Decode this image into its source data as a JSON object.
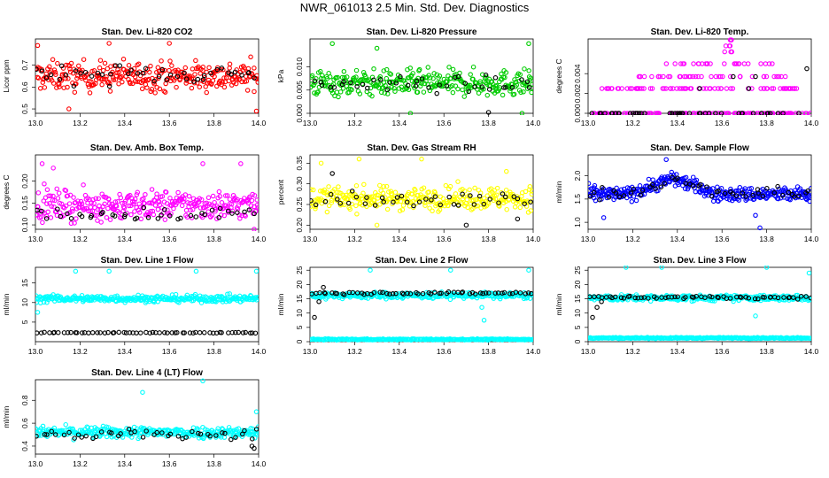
{
  "title": "NWR_061013  2.5 Min. Std. Dev. Diagnostics",
  "overlay_color": "#000000",
  "chart_data": [
    {
      "type": "scatter",
      "title": "Stan. Dev. Li-820 CO2",
      "ylabel": "Licor ppm",
      "color": "#ff0000",
      "xlim": [
        13.0,
        14.0
      ],
      "ylim": [
        0.48,
        0.82
      ],
      "xticks": [
        13.0,
        13.2,
        13.4,
        13.6,
        13.8,
        14.0
      ],
      "yticks": [
        0.5,
        0.6,
        0.7
      ],
      "xtick_labels": [
        "13.0",
        "13.2",
        "13.4",
        "13.6",
        "13.8",
        "14.0"
      ],
      "ytick_labels": [
        "0.5",
        "0.6",
        "0.7"
      ],
      "main": {
        "n": 300,
        "center": 0.65,
        "spread": 0.06,
        "outliers": [
          [
            13.01,
            0.79
          ],
          [
            13.15,
            0.5
          ],
          [
            13.33,
            0.8
          ],
          [
            13.6,
            0.8
          ],
          [
            13.99,
            0.49
          ]
        ]
      },
      "overlay": {
        "n": 45,
        "center": 0.66,
        "spread": 0.04,
        "outliers": []
      }
    },
    {
      "type": "scatter",
      "title": "Stan. Dev. Li-820 Pressure",
      "ylabel": "kPa",
      "color": "#00cc00",
      "xlim": [
        13.0,
        14.0
      ],
      "ylim": [
        0.0,
        0.016
      ],
      "xticks": [
        13.0,
        13.2,
        13.4,
        13.6,
        13.8,
        14.0
      ],
      "yticks": [
        0.0,
        0.005,
        0.01
      ],
      "xtick_labels": [
        "13.0",
        "13.2",
        "13.4",
        "13.6",
        "13.8",
        "14.0"
      ],
      "ytick_labels": [
        "0.000",
        "0.005",
        "0.010"
      ],
      "main": {
        "n": 320,
        "center": 0.0065,
        "spread": 0.0025,
        "outliers": [
          [
            13.1,
            0.015
          ],
          [
            13.98,
            0.015
          ],
          [
            13.3,
            0.014
          ],
          [
            13.45,
            0.0
          ],
          [
            13.95,
            0.0
          ]
        ]
      },
      "overlay": {
        "n": 40,
        "center": 0.0062,
        "spread": 0.0015,
        "outliers": [
          [
            13.8,
            0.0002
          ]
        ]
      }
    },
    {
      "type": "scatter",
      "title": "Stan. Dev. Li-820 Temp.",
      "ylabel": "degrees C",
      "color": "#ff00ff",
      "xlim": [
        13.0,
        14.0
      ],
      "ylim": [
        0.0,
        0.0075
      ],
      "xticks": [
        13.0,
        13.2,
        13.4,
        13.6,
        13.8,
        14.0
      ],
      "yticks": [
        0.0,
        0.002,
        0.004
      ],
      "xtick_labels": [
        "13.0",
        "13.2",
        "13.4",
        "13.6",
        "13.8",
        "14.0"
      ],
      "ytick_labels": [
        "0.000",
        "0.002",
        "0.004"
      ],
      "levels": [
        0.0,
        0.0025,
        0.0037,
        0.005
      ],
      "level_counts": [
        120,
        70,
        40,
        25
      ],
      "level_ranges": [
        [
          13.0,
          14.0
        ],
        [
          13.05,
          13.95
        ],
        [
          13.2,
          13.9
        ],
        [
          13.35,
          13.85
        ]
      ],
      "peak": {
        "x": 13.63,
        "values": [
          0.0062,
          0.0068,
          0.0074
        ]
      },
      "overlay": {
        "n": 45,
        "center": 0.0,
        "spread": 0.0,
        "outliers": [
          [
            13.5,
            0.0025
          ],
          [
            13.72,
            0.0025
          ],
          [
            13.75,
            0.0037
          ],
          [
            13.98,
            0.0045
          ],
          [
            13.65,
            0.0037
          ]
        ]
      }
    },
    {
      "type": "scatter",
      "title": "Stan. Dev. Amb. Box Temp.",
      "ylabel": "degrees C",
      "color": "#ff00ff",
      "xlim": [
        13.0,
        14.0
      ],
      "ylim": [
        0.09,
        0.26
      ],
      "xticks": [
        13.0,
        13.2,
        13.4,
        13.6,
        13.8,
        14.0
      ],
      "yticks": [
        0.1,
        0.15,
        0.2
      ],
      "xtick_labels": [
        "13.0",
        "13.2",
        "13.4",
        "13.6",
        "13.8",
        "14.0"
      ],
      "ytick_labels": [
        "0.10",
        "0.15",
        "0.20"
      ],
      "main": {
        "n": 320,
        "center": 0.145,
        "spread": 0.03,
        "outliers": [
          [
            13.03,
            0.24
          ],
          [
            13.08,
            0.23
          ],
          [
            13.75,
            0.24
          ],
          [
            13.92,
            0.24
          ],
          [
            13.98,
            0.09
          ]
        ]
      },
      "overlay": {
        "n": 40,
        "center": 0.125,
        "spread": 0.012,
        "outliers": []
      }
    },
    {
      "type": "scatter",
      "title": "Stan. Dev. Gas Stream RH",
      "ylabel": "percent",
      "color": "#ffff00",
      "xlim": [
        13.0,
        14.0
      ],
      "ylim": [
        0.19,
        0.37
      ],
      "xticks": [
        13.0,
        13.2,
        13.4,
        13.6,
        13.8,
        14.0
      ],
      "yticks": [
        0.2,
        0.25,
        0.3,
        0.35
      ],
      "xtick_labels": [
        "13.0",
        "13.2",
        "13.4",
        "13.6",
        "13.8",
        "14.0"
      ],
      "ytick_labels": [
        "0.20",
        "0.25",
        "0.30",
        "0.35"
      ],
      "main": {
        "n": 320,
        "center": 0.265,
        "spread": 0.025,
        "outliers": [
          [
            13.05,
            0.35
          ],
          [
            13.22,
            0.36
          ],
          [
            13.5,
            0.36
          ],
          [
            13.88,
            0.33
          ],
          [
            13.3,
            0.2
          ]
        ]
      },
      "overlay": {
        "n": 40,
        "center": 0.26,
        "spread": 0.025,
        "outliers": [
          [
            13.1,
            0.325
          ],
          [
            13.93,
            0.215
          ],
          [
            13.7,
            0.2
          ]
        ]
      }
    },
    {
      "type": "scatter",
      "title": "Stan. Dev. Sample Flow",
      "ylabel": "ml/min",
      "color": "#0000ff",
      "xlim": [
        13.0,
        14.0
      ],
      "ylim": [
        0.85,
        2.45
      ],
      "xticks": [
        13.0,
        13.2,
        13.4,
        13.6,
        13.8,
        14.0
      ],
      "yticks": [
        1.0,
        1.5,
        2.0
      ],
      "xtick_labels": [
        "13.0",
        "13.2",
        "13.4",
        "13.6",
        "13.8",
        "14.0"
      ],
      "ytick_labels": [
        "1.0",
        "1.5",
        "2.0"
      ],
      "main": {
        "n": 340,
        "center": 1.6,
        "spread": 0.14,
        "bump": {
          "start": 13.15,
          "end": 13.55,
          "peak": 13.38,
          "height": 0.35
        },
        "outliers": [
          [
            13.35,
            2.35
          ],
          [
            13.07,
            1.1
          ],
          [
            13.75,
            1.15
          ],
          [
            13.77,
            0.88
          ]
        ]
      },
      "overlay": {
        "n": 50,
        "center": 1.62,
        "spread": 0.12,
        "bump": {
          "start": 13.15,
          "end": 13.55,
          "peak": 13.38,
          "height": 0.3
        },
        "outliers": []
      }
    },
    {
      "type": "scatter",
      "title": "Stan. Dev. Line 1 Flow",
      "ylabel": "ml/min",
      "color": "#00ffff",
      "xlim": [
        13.0,
        14.0
      ],
      "ylim": [
        0.0,
        19.0
      ],
      "xticks": [
        13.0,
        13.2,
        13.4,
        13.6,
        13.8,
        14.0
      ],
      "yticks": [
        5,
        10,
        15
      ],
      "xtick_labels": [
        "13.0",
        "13.2",
        "13.4",
        "13.6",
        "13.8",
        "14.0"
      ],
      "ytick_labels": [
        "5",
        "10",
        "15"
      ],
      "main": {
        "n": 320,
        "center": 11.0,
        "spread": 0.8,
        "outliers": [
          [
            13.18,
            18
          ],
          [
            13.33,
            18
          ],
          [
            13.72,
            18
          ],
          [
            13.99,
            18
          ],
          [
            13.01,
            7.5
          ]
        ]
      },
      "overlay": {
        "n": 60,
        "center": 2.3,
        "spread": 0.1,
        "outliers": []
      }
    },
    {
      "type": "scatter",
      "title": "Stan. Dev. Line 2 Flow",
      "ylabel": "ml/min",
      "color": "#00ffff",
      "xlim": [
        13.0,
        14.0
      ],
      "ylim": [
        0.0,
        26.0
      ],
      "xticks": [
        13.0,
        13.2,
        13.4,
        13.6,
        13.8,
        14.0
      ],
      "yticks": [
        0,
        5,
        10,
        15,
        20,
        25
      ],
      "xtick_labels": [
        "13.0",
        "13.2",
        "13.4",
        "13.6",
        "13.8",
        "14.0"
      ],
      "ytick_labels": [
        "0",
        "5",
        "10",
        "15",
        "20",
        "25"
      ],
      "main": {
        "n": 320,
        "center": 16.2,
        "spread": 1.0,
        "outliers": [
          [
            13.27,
            25
          ],
          [
            13.63,
            25
          ],
          [
            13.98,
            25
          ],
          [
            13.77,
            12
          ],
          [
            13.78,
            7.5
          ]
        ]
      },
      "low": {
        "n": 260,
        "center": 0.8,
        "spread": 0.2
      },
      "overlay": {
        "n": 60,
        "center": 17.0,
        "spread": 0.4,
        "outliers": [
          [
            13.02,
            8.5
          ],
          [
            13.04,
            14
          ],
          [
            13.06,
            19
          ]
        ]
      }
    },
    {
      "type": "scatter",
      "title": "Stan. Dev. Line 3 Flow",
      "ylabel": "ml/min",
      "color": "#00ffff",
      "xlim": [
        13.0,
        14.0
      ],
      "ylim": [
        0.0,
        26.0
      ],
      "xticks": [
        13.0,
        13.2,
        13.4,
        13.6,
        13.8,
        14.0
      ],
      "yticks": [
        0,
        5,
        10,
        15,
        20,
        25
      ],
      "xtick_labels": [
        "13.0",
        "13.2",
        "13.4",
        "13.6",
        "13.8",
        "14.0"
      ],
      "ytick_labels": [
        "0",
        "5",
        "10",
        "15",
        "20",
        "25"
      ],
      "main": {
        "n": 320,
        "center": 15.3,
        "spread": 0.9,
        "outliers": [
          [
            13.17,
            26
          ],
          [
            13.33,
            26
          ],
          [
            13.8,
            26
          ],
          [
            13.99,
            24
          ],
          [
            13.75,
            9
          ]
        ]
      },
      "low": {
        "n": 260,
        "center": 1.3,
        "spread": 0.2
      },
      "overlay": {
        "n": 60,
        "center": 15.5,
        "spread": 0.4,
        "outliers": [
          [
            13.02,
            8.5
          ],
          [
            13.04,
            12
          ],
          [
            13.06,
            14
          ]
        ]
      }
    },
    {
      "type": "scatter",
      "title": "Stan. Dev. Line 4 (LT) Flow",
      "ylabel": "ml/min",
      "color": "#00ffff",
      "xlim": [
        13.0,
        14.0
      ],
      "ylim": [
        0.33,
        0.98
      ],
      "xticks": [
        13.0,
        13.2,
        13.4,
        13.6,
        13.8,
        14.0
      ],
      "yticks": [
        0.4,
        0.6,
        0.8
      ],
      "xtick_labels": [
        "13.0",
        "13.2",
        "13.4",
        "13.6",
        "13.8",
        "14.0"
      ],
      "ytick_labels": [
        "0.4",
        "0.6",
        "0.8"
      ],
      "main": {
        "n": 320,
        "center": 0.52,
        "spread": 0.045,
        "outliers": [
          [
            13.48,
            0.87
          ],
          [
            13.75,
            0.97
          ],
          [
            13.99,
            0.7
          ]
        ]
      },
      "overlay": {
        "n": 45,
        "center": 0.5,
        "spread": 0.05,
        "outliers": [
          [
            13.98,
            0.38
          ],
          [
            13.97,
            0.4
          ]
        ]
      }
    }
  ]
}
